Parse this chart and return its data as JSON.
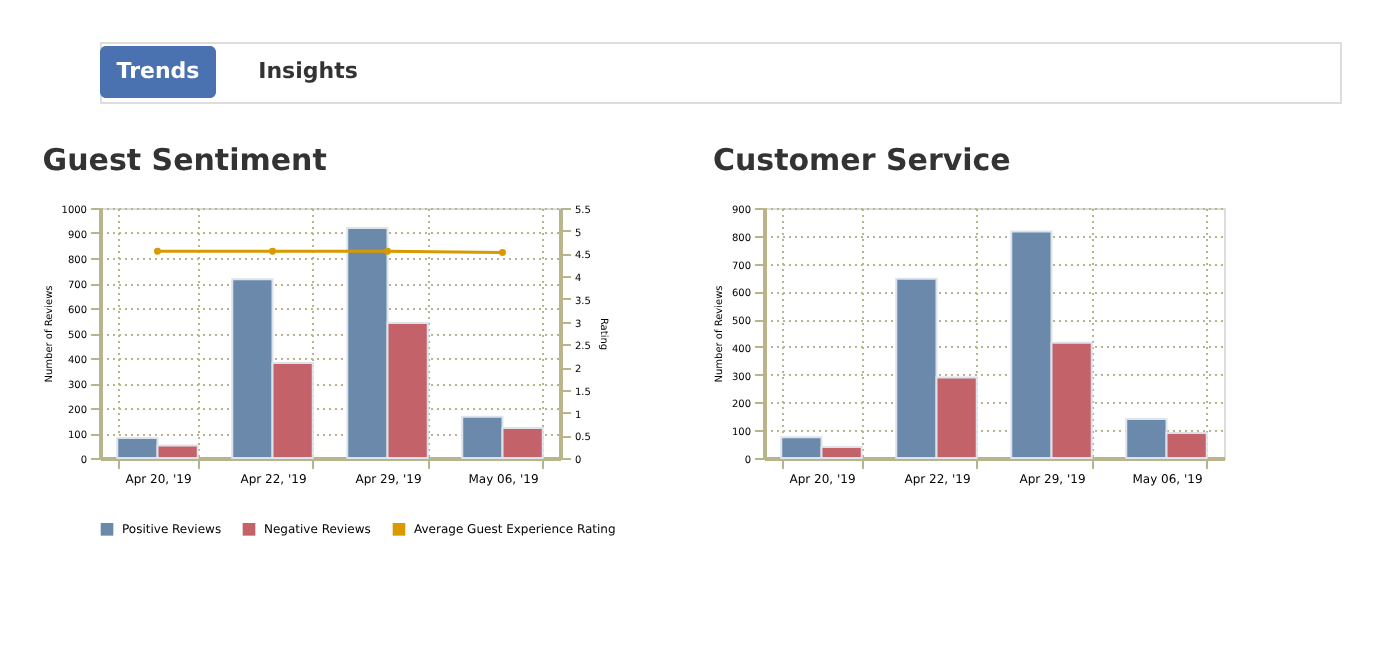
{
  "chart_data": [
    {
      "type": "other",
      "annotations": [
        "Trends",
        "Insights"
      ]
    },
    {
      "type": "bar",
      "title": "Guest Sentiment",
      "ylabel": "Number of Reviews",
      "y2label": "Rating",
      "categories": [
        "Apr 20, '19",
        "Apr 22, '19",
        "Apr 29, '19",
        "May 06, '19"
      ],
      "series": [
        {
          "name": "Positive Reviews",
          "color": "#6b8aab",
          "values": [
            80,
            715,
            920,
            165
          ]
        },
        {
          "name": "Negative Reviews",
          "color": "#c4626a",
          "values": [
            50,
            380,
            540,
            120
          ]
        },
        {
          "name": "Average Guest Experience Rating",
          "color": "#d99a00",
          "type": "line",
          "axis": "y2",
          "values": [
            4.55,
            4.55,
            4.55,
            4.52
          ]
        }
      ],
      "ylim": [
        0,
        1000
      ],
      "yticks": [
        0,
        100,
        200,
        300,
        400,
        500,
        600,
        700,
        800,
        900,
        1000
      ],
      "y2lim": [
        0,
        5.5
      ],
      "y2ticks": [
        0,
        0.5,
        1,
        1.5,
        2,
        2.5,
        3,
        3.5,
        4,
        4.5,
        5,
        5.5
      ],
      "grid": true,
      "legend": "bottom",
      "marker": "circle"
    },
    {
      "type": "bar",
      "title": "Customer Service",
      "ylabel": "Number of Reviews",
      "categories": [
        "Apr 20, '19",
        "Apr 22, '19",
        "Apr 29, '19",
        "May 06, '19"
      ],
      "series": [
        {
          "name": "Positive Reviews",
          "color": "#6b8aab",
          "values": [
            75,
            645,
            815,
            140
          ]
        },
        {
          "name": "Negative Reviews",
          "color": "#c4626a",
          "values": [
            40,
            290,
            415,
            90
          ]
        }
      ],
      "ylim": [
        0,
        900
      ],
      "yticks": [
        0,
        100,
        200,
        300,
        400,
        500,
        600,
        700,
        800,
        900
      ],
      "grid": true,
      "legend": "bottom"
    }
  ]
}
